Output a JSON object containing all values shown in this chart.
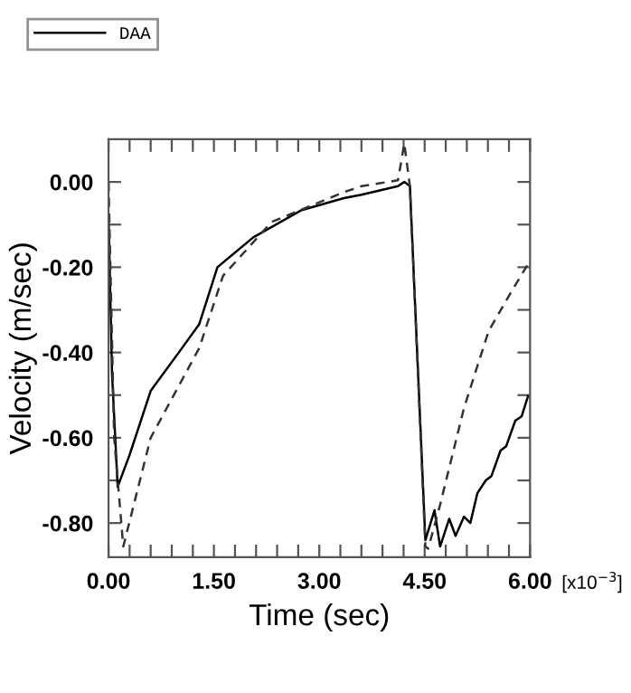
{
  "chart_data": {
    "type": "line",
    "xlabel": "Time (sec)",
    "ylabel": "Velocity (m/sec)",
    "annotations": [
      "[x10$^{−3}$]"
    ],
    "xlim": [
      0,
      6
    ],
    "ylim": [
      -0.88,
      0.1
    ],
    "xticks": [
      {
        "value": 0,
        "label": "0.00"
      },
      {
        "value": 0.3,
        "label": null
      },
      {
        "value": 0.6,
        "label": null
      },
      {
        "value": 0.9,
        "label": null
      },
      {
        "value": 1.2,
        "label": null
      },
      {
        "value": 1.5,
        "label": "1.50"
      },
      {
        "value": 1.8,
        "label": null
      },
      {
        "value": 2.1,
        "label": null
      },
      {
        "value": 2.4,
        "label": null
      },
      {
        "value": 2.7,
        "label": null
      },
      {
        "value": 3.0,
        "label": "3.00"
      },
      {
        "value": 3.3,
        "label": null
      },
      {
        "value": 3.6,
        "label": null
      },
      {
        "value": 3.9,
        "label": null
      },
      {
        "value": 4.2,
        "label": null
      },
      {
        "value": 4.5,
        "label": "4.50"
      },
      {
        "value": 4.8,
        "label": null
      },
      {
        "value": 5.1,
        "label": null
      },
      {
        "value": 5.4,
        "label": null
      },
      {
        "value": 5.7,
        "label": null
      },
      {
        "value": 6.0,
        "label": "6.00"
      }
    ],
    "yticks": [
      {
        "value": -0.8,
        "label": "-0.80"
      },
      {
        "value": -0.7,
        "label": null
      },
      {
        "value": -0.6,
        "label": "-0.60"
      },
      {
        "value": -0.5,
        "label": null
      },
      {
        "value": -0.4,
        "label": "-0.40"
      },
      {
        "value": -0.3,
        "label": null
      },
      {
        "value": -0.2,
        "label": "-0.20"
      },
      {
        "value": -0.1,
        "label": null
      },
      {
        "value": 0.0,
        "label": "0.00"
      }
    ],
    "grid": false,
    "legend": "top left",
    "marker": "none",
    "series": [
      {
        "name": "DAA",
        "color": "#000000",
        "line_style": "solid",
        "x": [
          0,
          0.05,
          0.13,
          0.3,
          0.6,
          1.0,
          1.29,
          1.55,
          2.06,
          2.75,
          3.35,
          3.6,
          4.12,
          4.21,
          4.29,
          4.51,
          4.64,
          4.72,
          4.85,
          4.94,
          5.06,
          5.15,
          5.25,
          5.37,
          5.45,
          5.58,
          5.66,
          5.79,
          5.88,
          5.97
        ],
        "values": [
          -0.08,
          -0.45,
          -0.715,
          -0.64,
          -0.49,
          -0.4,
          -0.334,
          -0.2,
          -0.13,
          -0.066,
          -0.038,
          -0.03,
          -0.01,
          0.0,
          -0.01,
          -0.84,
          -0.77,
          -0.855,
          -0.79,
          -0.83,
          -0.785,
          -0.8,
          -0.73,
          -0.7,
          -0.69,
          -0.63,
          -0.62,
          -0.56,
          -0.55,
          -0.503
        ]
      },
      {
        "color": "#333333",
        "line_style": "dashed",
        "x": [
          0,
          0.08,
          0.21,
          0.6,
          1.29,
          1.63,
          2.32,
          3.35,
          3.6,
          4.12,
          4.21,
          4.29,
          4.51,
          4.55,
          4.72,
          5.06,
          5.41,
          5.71,
          5.97
        ],
        "values": [
          0.0,
          -0.6,
          -0.855,
          -0.6,
          -0.39,
          -0.22,
          -0.094,
          -0.024,
          -0.01,
          0.004,
          0.09,
          -0.01,
          -0.855,
          -0.86,
          -0.757,
          -0.53,
          -0.35,
          -0.264,
          -0.193
        ]
      }
    ]
  }
}
